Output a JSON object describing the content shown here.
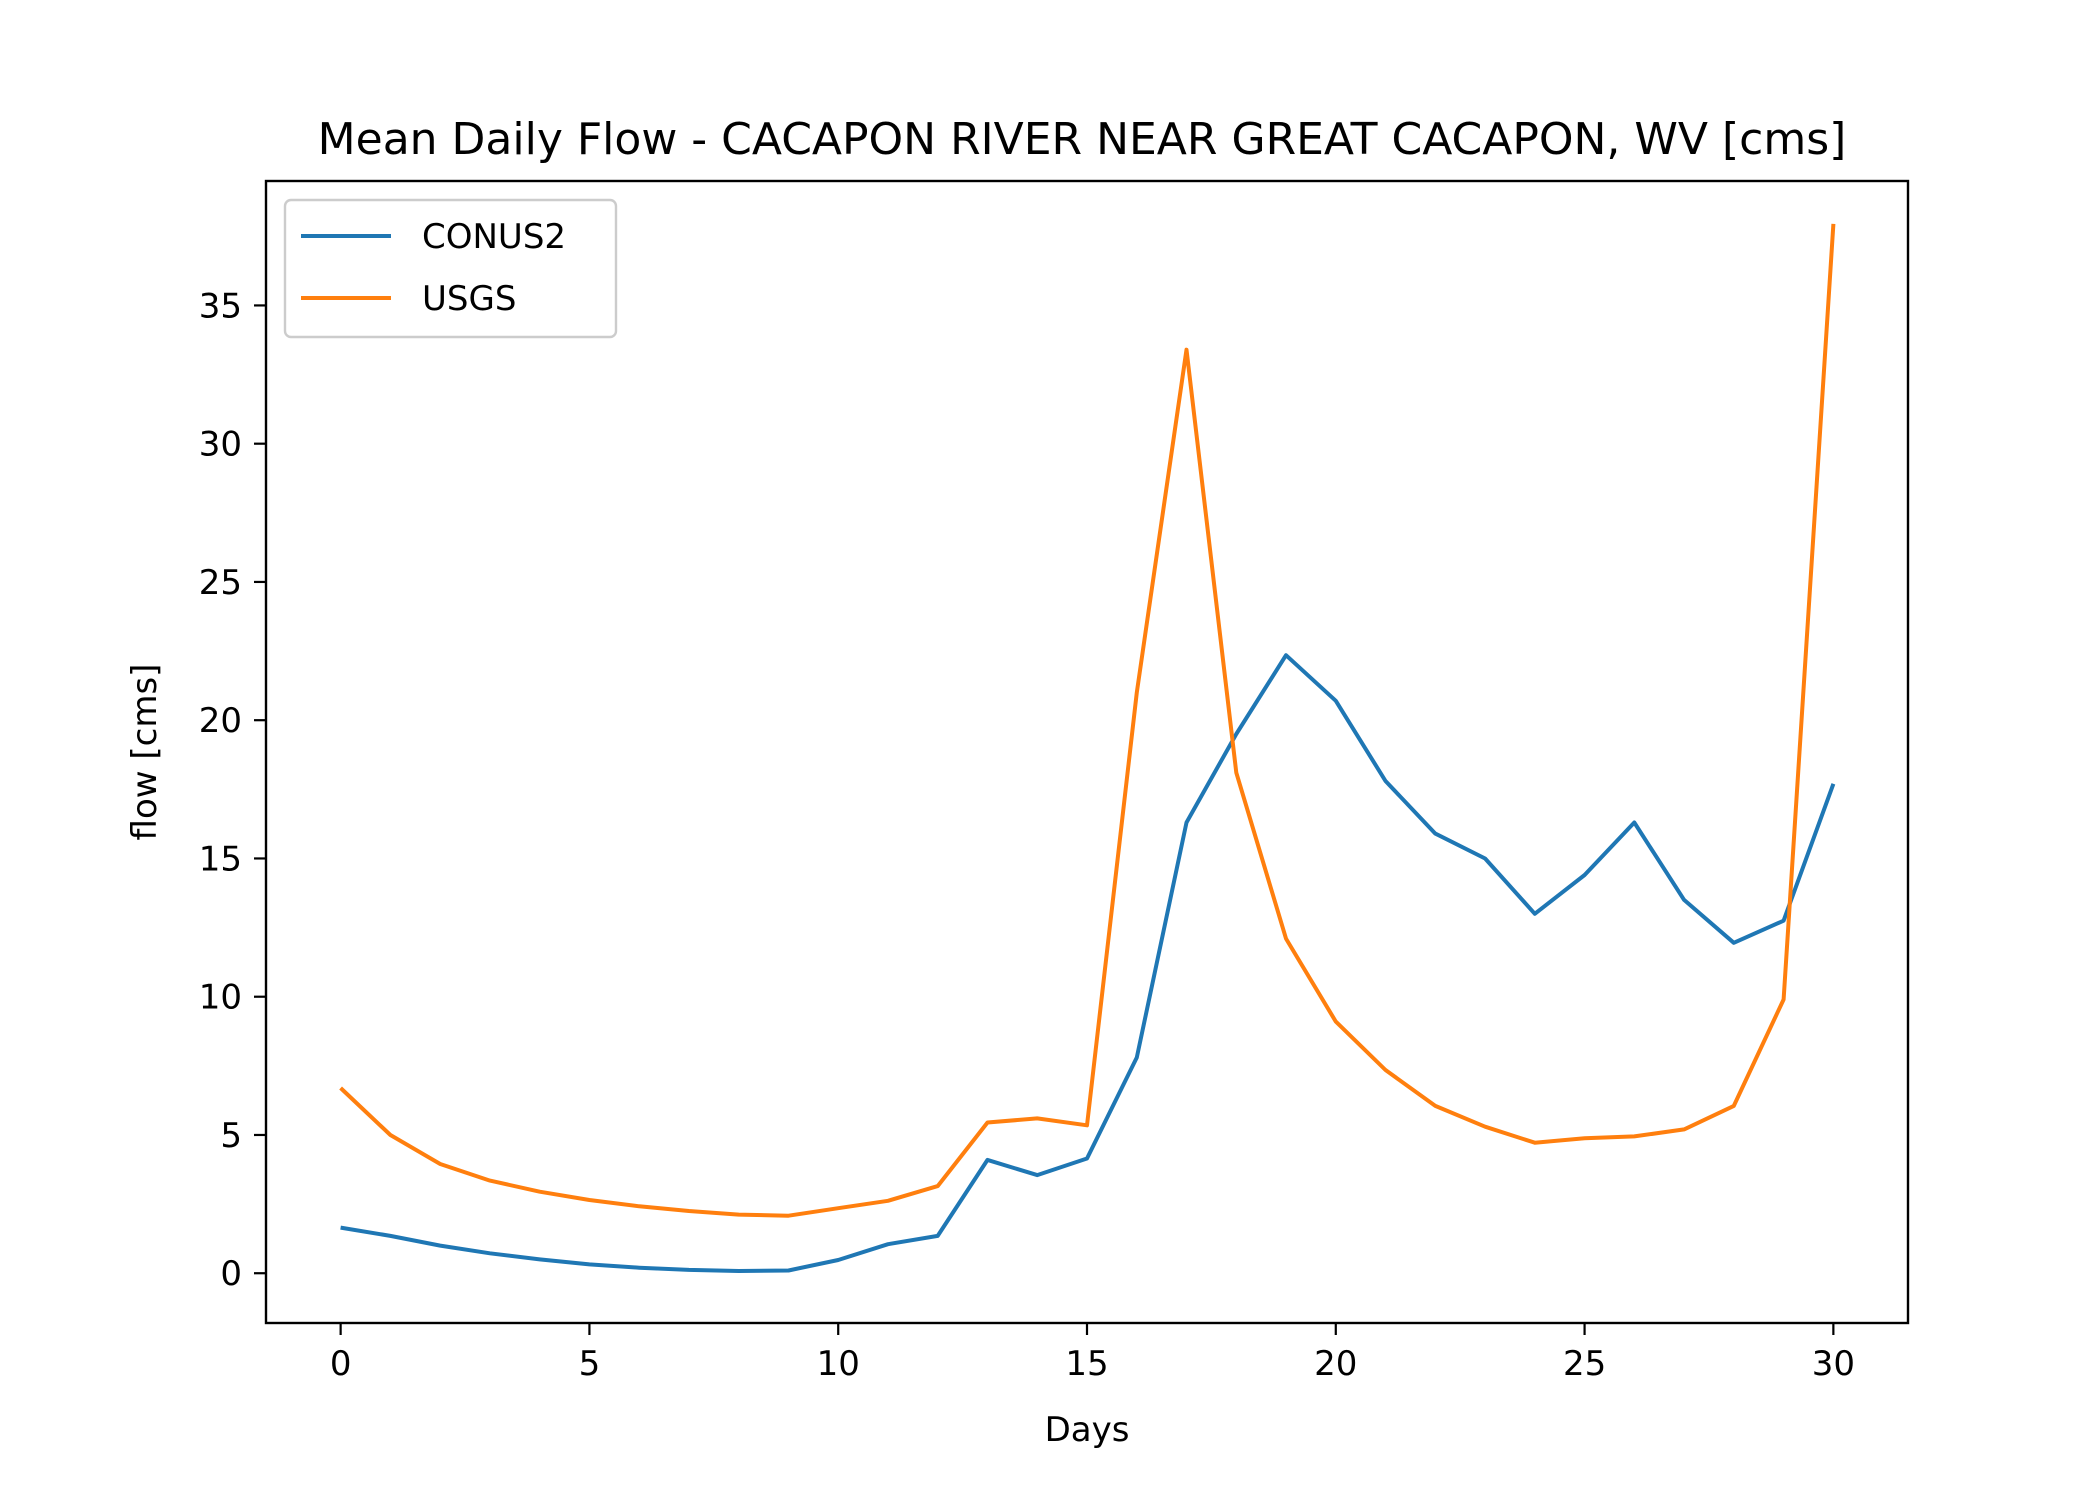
{
  "chart_data": {
    "type": "line",
    "title": "Mean Daily Flow - CACAPON RIVER NEAR GREAT CACAPON, WV [cms]",
    "xlabel": "Days",
    "ylabel": "flow [cms]",
    "xlim": [
      -1.5,
      31.5
    ],
    "ylim": [
      -1.8,
      39.5
    ],
    "xticks": [
      0,
      5,
      10,
      15,
      20,
      25,
      30
    ],
    "yticks": [
      0,
      5,
      10,
      15,
      20,
      25,
      30,
      35
    ],
    "grid": false,
    "legend_position": "top-left",
    "x": [
      0,
      1,
      2,
      3,
      4,
      5,
      6,
      7,
      8,
      9,
      10,
      11,
      12,
      13,
      14,
      15,
      16,
      17,
      18,
      19,
      20,
      21,
      22,
      23,
      24,
      25,
      26,
      27,
      28,
      29,
      30
    ],
    "series": [
      {
        "name": "CONUS2",
        "color": "#1f77b4",
        "values": [
          1.65,
          1.35,
          1.0,
          0.72,
          0.5,
          0.32,
          0.2,
          0.12,
          0.08,
          0.1,
          0.48,
          1.05,
          1.35,
          4.1,
          3.55,
          4.15,
          7.8,
          16.3,
          19.5,
          22.35,
          20.7,
          17.8,
          15.9,
          15.0,
          13.0,
          14.4,
          16.3,
          13.5,
          11.95,
          12.75,
          17.7
        ]
      },
      {
        "name": "USGS",
        "color": "#ff7f0e",
        "values": [
          6.7,
          5.0,
          3.95,
          3.35,
          2.95,
          2.65,
          2.42,
          2.25,
          2.12,
          2.08,
          2.35,
          2.62,
          3.15,
          5.45,
          5.6,
          5.35,
          21.0,
          33.4,
          18.1,
          12.1,
          9.1,
          7.35,
          6.05,
          5.3,
          4.72,
          4.88,
          4.95,
          5.2,
          6.05,
          9.9,
          37.95
        ]
      }
    ]
  }
}
